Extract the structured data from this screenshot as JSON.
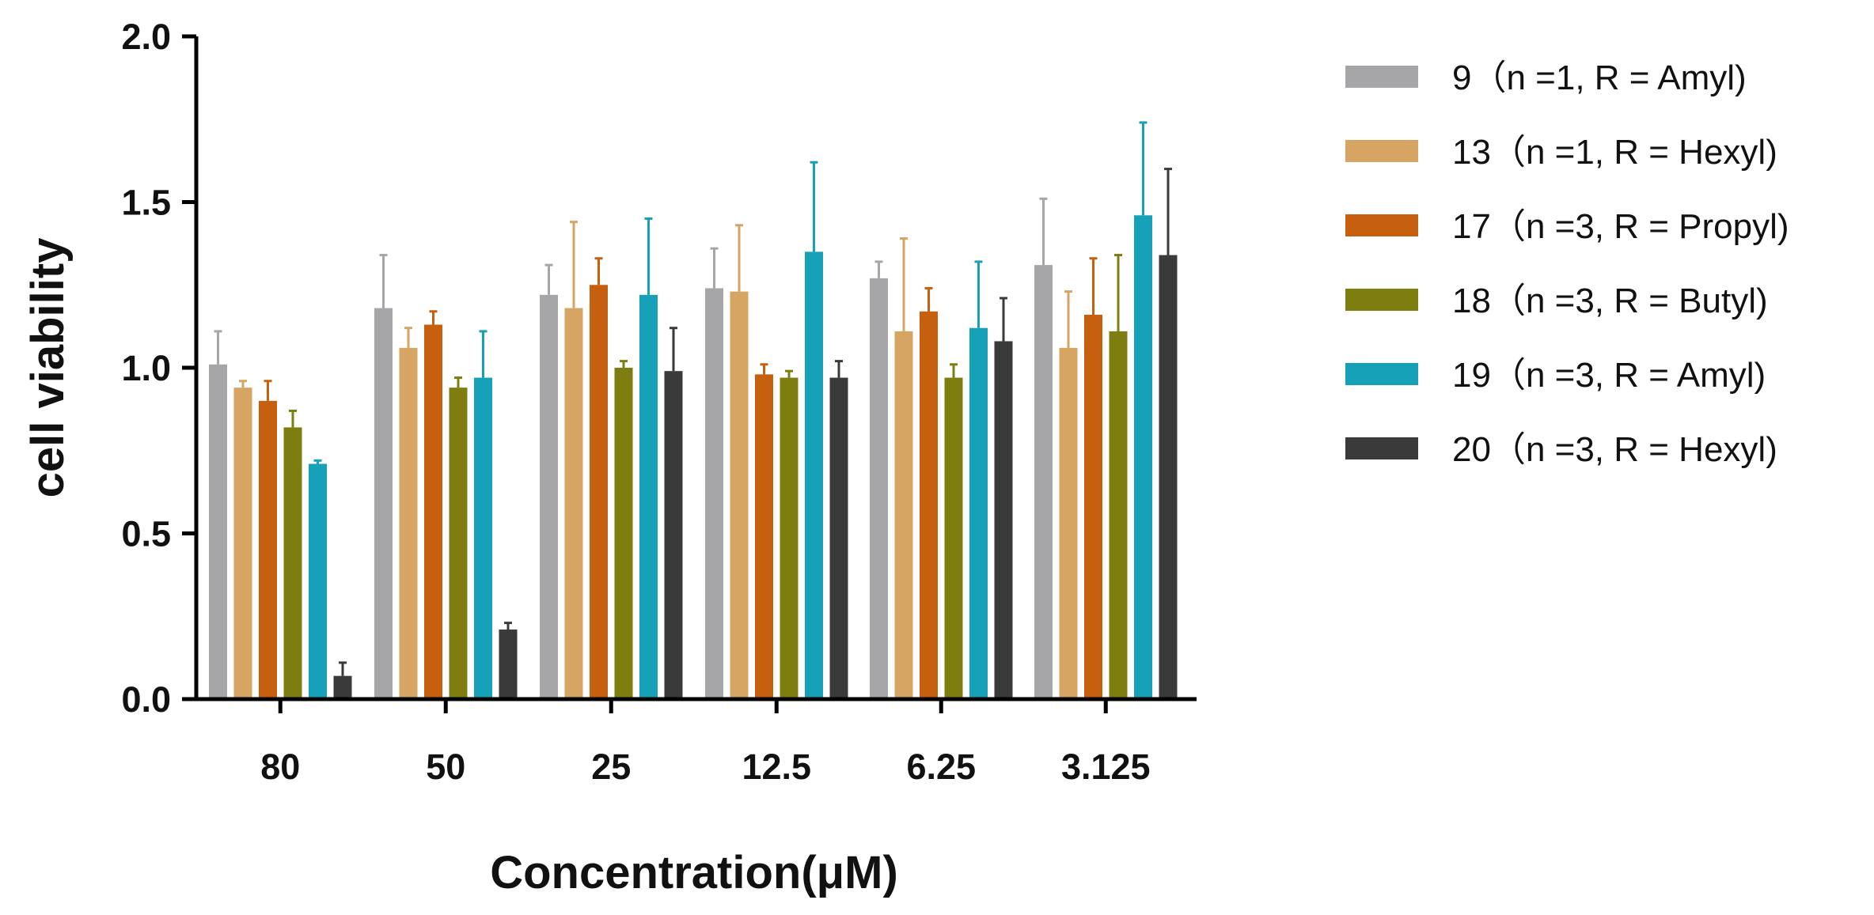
{
  "chart_data": {
    "type": "bar",
    "xlabel": "Concentration(μM)",
    "ylabel": "cell viability",
    "ylim": [
      0,
      2.0
    ],
    "yticks": [
      "0.0",
      "0.5",
      "1.0",
      "1.5",
      "2.0"
    ],
    "categories": [
      "80",
      "50",
      "25",
      "12.5",
      "6.25",
      "3.125"
    ],
    "legend_position": "right",
    "series": [
      {
        "name": "9（n =1, R = Amyl)",
        "color": "#a6a6a8",
        "values": [
          1.01,
          1.18,
          1.22,
          1.24,
          1.27,
          1.31
        ],
        "errors": [
          0.1,
          0.16,
          0.09,
          0.12,
          0.05,
          0.2
        ]
      },
      {
        "name": "13（n =1, R = Hexyl)",
        "color": "#d6a463",
        "values": [
          0.94,
          1.06,
          1.18,
          1.23,
          1.11,
          1.06
        ],
        "errors": [
          0.02,
          0.06,
          0.26,
          0.2,
          0.28,
          0.17
        ]
      },
      {
        "name": "17（n =3, R = Propyl)",
        "color": "#c7600e",
        "values": [
          0.9,
          1.13,
          1.25,
          0.98,
          1.17,
          1.16
        ],
        "errors": [
          0.06,
          0.04,
          0.08,
          0.03,
          0.07,
          0.17
        ]
      },
      {
        "name": "18（n =3, R = Butyl)",
        "color": "#7d7d10",
        "values": [
          0.82,
          0.94,
          1.0,
          0.97,
          0.97,
          1.11
        ],
        "errors": [
          0.05,
          0.03,
          0.02,
          0.02,
          0.04,
          0.23
        ]
      },
      {
        "name": "19（n =3, R = Amyl)",
        "color": "#16a1b8",
        "values": [
          0.71,
          0.97,
          1.22,
          1.35,
          1.12,
          1.46
        ],
        "errors": [
          0.01,
          0.14,
          0.23,
          0.27,
          0.2,
          0.28
        ]
      },
      {
        "name": "20（n =3, R = Hexyl)",
        "color": "#3a3a3a",
        "values": [
          0.07,
          0.21,
          0.99,
          0.97,
          1.08,
          1.34
        ],
        "errors": [
          0.04,
          0.02,
          0.13,
          0.05,
          0.13,
          0.26
        ]
      }
    ]
  }
}
